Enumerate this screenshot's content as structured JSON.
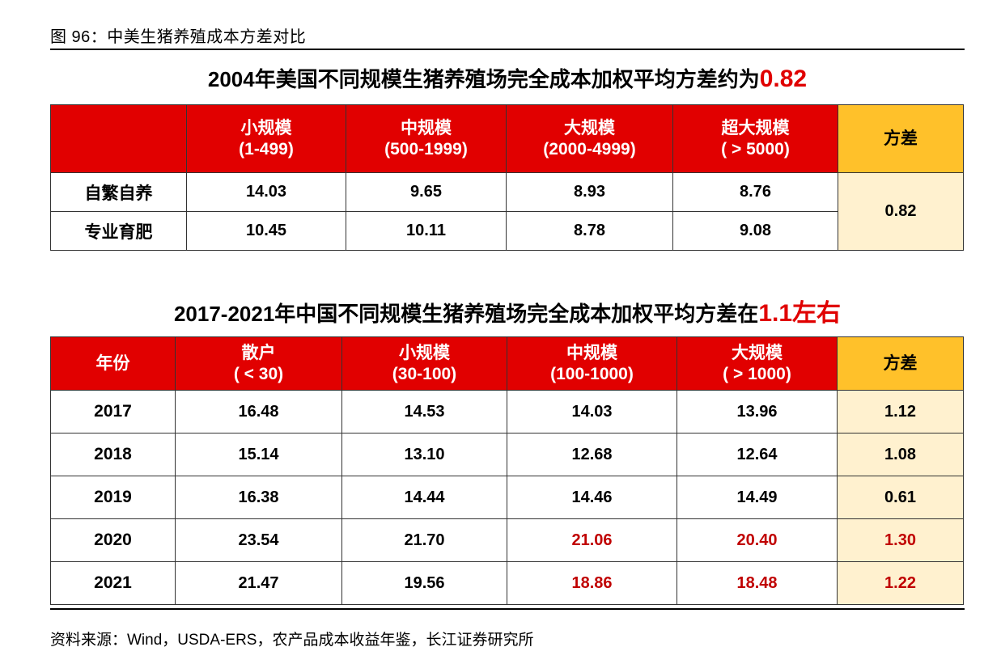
{
  "caption": "图 96：中美生猪养殖成本方差对比",
  "table1": {
    "title_prefix": "2004年美国不同规模生猪养殖场完全成本加权平均方差约为",
    "title_highlight": "0.82",
    "headers": [
      {
        "line1": "小规模",
        "line2": "(1-499)"
      },
      {
        "line1": "中规模",
        "line2": "(500-1999)"
      },
      {
        "line1": "大规模",
        "line2": "(2000-4999)"
      },
      {
        "line1": "超大规模",
        "line2": "( > 5000)"
      }
    ],
    "variance_header": "方差",
    "rows": [
      {
        "label": "自繁自养",
        "values": [
          "14.03",
          "9.65",
          "8.93",
          "8.76"
        ]
      },
      {
        "label": "专业育肥",
        "values": [
          "10.45",
          "10.11",
          "8.78",
          "9.08"
        ]
      }
    ],
    "variance": "0.82"
  },
  "table2": {
    "title_prefix": "2017-2021年中国不同规模生猪养殖场完全成本加权平均方差在",
    "title_highlight": "1.1左右",
    "year_header": "年份",
    "headers": [
      {
        "line1": "散户",
        "line2": "( < 30)"
      },
      {
        "line1": "小规模",
        "line2": "(30-100)"
      },
      {
        "line1": "中规模",
        "line2": "(100-1000)"
      },
      {
        "line1": "大规模",
        "line2": "( > 1000)"
      }
    ],
    "variance_header": "方差",
    "rows": [
      {
        "year": "2017",
        "values": [
          "16.48",
          "14.53",
          "14.03",
          "13.96"
        ],
        "variance": "1.12"
      },
      {
        "year": "2018",
        "values": [
          "15.14",
          "13.10",
          "12.68",
          "12.64"
        ],
        "variance": "1.08"
      },
      {
        "year": "2019",
        "values": [
          "16.38",
          "14.44",
          "14.46",
          "14.49"
        ],
        "variance": "0.61"
      },
      {
        "year": "2020",
        "values": [
          "23.54",
          "21.70",
          "21.06",
          "20.40"
        ],
        "variance": "1.30"
      },
      {
        "year": "2021",
        "values": [
          "21.47",
          "19.56",
          "18.86",
          "18.48"
        ],
        "variance": "1.22"
      }
    ]
  },
  "highlight_color": "#c00000",
  "source": "资料来源：Wind，USDA-ERS，农产品成本收益年鉴，长江证券研究所"
}
